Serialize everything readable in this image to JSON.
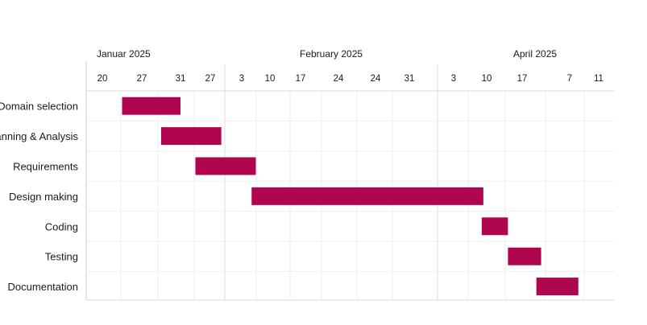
{
  "chart_data": {
    "type": "gantt",
    "title": "",
    "months": [
      "Januar 2025",
      "February 2025",
      "April 2025"
    ],
    "tick_labels": [
      "20",
      "27",
      "31",
      "27",
      "3",
      "10",
      "17",
      "24",
      "24",
      "31",
      "3",
      "10",
      "17",
      "7",
      "11"
    ],
    "tasks": [
      {
        "name": "Domain selection",
        "start_tick": 0.5,
        "end_tick": 2.0
      },
      {
        "name": "Planning & Analysis",
        "start_tick": 1.5,
        "end_tick": 3.35
      },
      {
        "name": "Requirements",
        "start_tick": 2.5,
        "end_tick": 4.5
      },
      {
        "name": "Design making",
        "start_tick": 4.35,
        "end_tick": 10.9
      },
      {
        "name": "Coding",
        "start_tick": 10.85,
        "end_tick": 11.6
      },
      {
        "name": "Testing",
        "start_tick": 11.6,
        "end_tick": 12.4
      },
      {
        "name": "Documentation",
        "start_tick": 12.3,
        "end_tick": 13.3
      }
    ],
    "bar_color": "#b0054f",
    "grid": true
  }
}
